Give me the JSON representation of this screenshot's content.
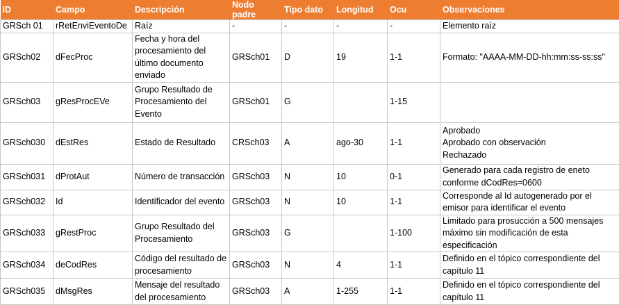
{
  "table": {
    "header": [
      "ID",
      "Campo",
      "Descripción",
      "Nodo padre",
      "Tipo dato",
      "Longitud",
      "Ocu",
      "Observaciones"
    ],
    "rows": [
      [
        "GRSch 01",
        "rRetEnviEventoDe",
        "Raíz",
        "-",
        "-",
        "-",
        "-",
        "Elemento raíz"
      ],
      [
        "GRSch02",
        "dFecProc",
        "Fecha y hora del procesamiento del último documento enviado",
        "GRSch01",
        "D",
        "19",
        "1-1",
        "Formato: \"AAAA-MM-DD-hh:mm:ss-ss:ss\""
      ],
      [
        "GRSch03",
        "gResProcEVe",
        "Grupo Resultado de Procesamiento del Evento",
        "GRSch01",
        "G",
        null,
        "1-15",
        null
      ],
      [
        "GRSch030",
        "dEstRes",
        "Estado de Resultado",
        "CRSch03",
        "A",
        "ago-30",
        "1-1",
        [
          "Aprobado",
          "Aprobado con observación",
          "Rechazado"
        ]
      ],
      [
        "GRSch031",
        "dProtAut",
        "Número de transacción",
        "GRSch03",
        "N",
        "10",
        "0-1",
        "Generado para cada registro de eneto conforme dCodRes=0600"
      ],
      [
        "GRSch032",
        "Id",
        "Identificador del evento",
        "GRSch03",
        "N",
        "10",
        "1-1",
        "Corresponde al Id autogenerado por el emisor para identificar el evento"
      ],
      [
        "GRSch033",
        "gRestProc",
        "Grupo Resultado del Procesamiento",
        "GRSch03",
        "G",
        null,
        "1-100",
        "Limitado para prosucción a 500 mensajes máximo sin modificación de esta especificación"
      ],
      [
        "GRSch034",
        "deCodRes",
        "Código del resultado de procesamiento",
        "GRSch03",
        "N",
        "4",
        "1-1",
        "Definido en el tópico correspondiente del capítulo 11"
      ],
      [
        "GRSch035",
        "dMsgRes",
        "Mensaje del resultado del procesamiento",
        "GRSch03",
        "A",
        "1-255",
        "1-1",
        "Definido en el tópico correspondiente del capítulo 11"
      ]
    ]
  }
}
